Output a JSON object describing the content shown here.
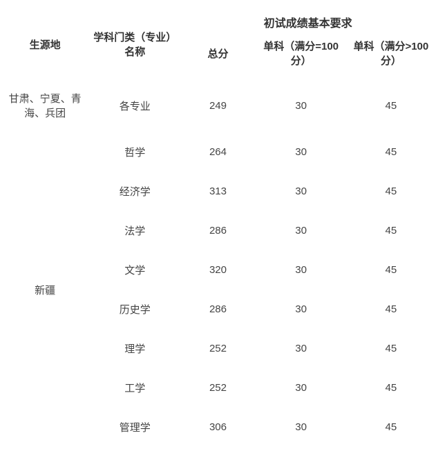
{
  "headers": {
    "origin": "生源地",
    "subject": "学科门类（专业）名称",
    "requirements": "初试成绩基本要求",
    "total": "总分",
    "sub100": "单科（满分=100分）",
    "subgt100": "单科（满分>100分）"
  },
  "rows": [
    {
      "origin": "甘肃、宁夏、青海、兵团",
      "subject": "各专业",
      "total": "249",
      "sub100": "30",
      "subgt100": "45",
      "origin_rowspan": 1
    },
    {
      "origin": "新疆",
      "subject": "哲学",
      "total": "264",
      "sub100": "30",
      "subgt100": "45",
      "origin_rowspan": 8
    },
    {
      "origin": "",
      "subject": "经济学",
      "total": "313",
      "sub100": "30",
      "subgt100": "45",
      "origin_rowspan": 0
    },
    {
      "origin": "",
      "subject": "法学",
      "total": "286",
      "sub100": "30",
      "subgt100": "45",
      "origin_rowspan": 0
    },
    {
      "origin": "",
      "subject": "文学",
      "total": "320",
      "sub100": "30",
      "subgt100": "45",
      "origin_rowspan": 0
    },
    {
      "origin": "",
      "subject": "历史学",
      "total": "286",
      "sub100": "30",
      "subgt100": "45",
      "origin_rowspan": 0
    },
    {
      "origin": "",
      "subject": "理学",
      "total": "252",
      "sub100": "30",
      "subgt100": "45",
      "origin_rowspan": 0
    },
    {
      "origin": "",
      "subject": "工学",
      "total": "252",
      "sub100": "30",
      "subgt100": "45",
      "origin_rowspan": 0
    },
    {
      "origin": "",
      "subject": "管理学",
      "total": "306",
      "sub100": "30",
      "subgt100": "45",
      "origin_rowspan": 0
    }
  ],
  "colors": {
    "text": "#333333",
    "cell": "#444444",
    "background": "#ffffff"
  },
  "fontsize": {
    "header": 15,
    "body": 15
  }
}
